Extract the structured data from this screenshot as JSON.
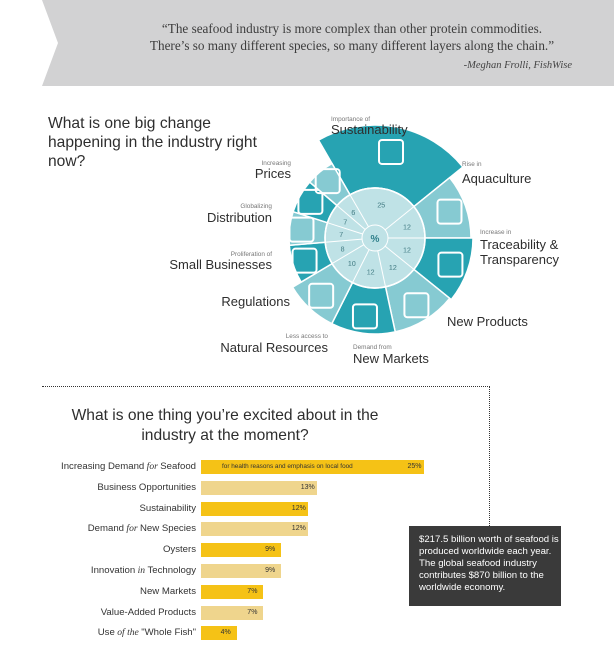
{
  "quote": {
    "line1": "“The seafood industry is more complex than other protein commodities.",
    "line2": "There’s so many different species, so many different layers along the chain.”",
    "attribution": "-Meghan Frolli, FishWise"
  },
  "question1": "What is one big change happening in the industry right now?",
  "question2": "What is one thing you’re excited about in the industry at the moment?",
  "factbox": "$217.5 billion worth of seafood is produced worldwide each year. The global seafood industry contributes $870 billion to the worldwide economy.",
  "colors": {
    "teal": "#27a3b2",
    "light_teal": "#86cad2",
    "inner": "#bfe2e6",
    "yellow": "#f5c216",
    "light_yellow": "#efd58d"
  },
  "center_symbol": "%",
  "chart_data": [
    {
      "type": "pie",
      "segments": [
        {
          "sub": "Importance of",
          "label": "Sustainability",
          "value": 25,
          "icon": "leaf-icon"
        },
        {
          "sub": "Rise in",
          "label": "Aquaculture",
          "value": 12,
          "icon": "farm-icon"
        },
        {
          "sub": "Increase in",
          "label": "Traceability & Transparency",
          "value": 12,
          "icon": "trace-icon"
        },
        {
          "sub": "",
          "label": "New Products",
          "value": 12,
          "icon": "box-icon"
        },
        {
          "sub": "Demand from",
          "label": "New Markets",
          "value": 12,
          "icon": "chart-icon"
        },
        {
          "sub": "Less access to",
          "label": "Natural Resources",
          "value": 10,
          "icon": "lock-icon"
        },
        {
          "sub": "",
          "label": "Regulations",
          "value": 8,
          "icon": "gavel-icon"
        },
        {
          "sub": "Proliferation of",
          "label": "Small Businesses",
          "value": 7,
          "icon": "people-icon"
        },
        {
          "sub": "Globalizing",
          "label": "Distribution",
          "value": 7,
          "icon": "arrow-icon"
        },
        {
          "sub": "Increasing",
          "label": "Prices",
          "value": 6,
          "icon": "dollar-icon"
        }
      ]
    },
    {
      "type": "bar",
      "orientation": "horizontal",
      "categories": [
        {
          "pre": "Increasing Demand",
          "em": "for",
          "post": "Seafood"
        },
        {
          "pre": "Business Opportunities",
          "em": "",
          "post": ""
        },
        {
          "pre": "Sustainability",
          "em": "",
          "post": ""
        },
        {
          "pre": "Demand",
          "em": "for",
          "post": "New Species"
        },
        {
          "pre": "Oysters",
          "em": "",
          "post": ""
        },
        {
          "pre": "Innovation",
          "em": "in",
          "post": "Technology"
        },
        {
          "pre": "New Markets",
          "em": "",
          "post": ""
        },
        {
          "pre": "Value-Added Products",
          "em": "",
          "post": ""
        },
        {
          "pre": "Use",
          "em": "of the",
          "post": "\"Whole Fish\""
        }
      ],
      "values": [
        25,
        13,
        12,
        12,
        9,
        9,
        7,
        7,
        4
      ],
      "labels": [
        "25%",
        "13%",
        "12%",
        "12%",
        "9%",
        "9%",
        "7%",
        "7%",
        "4%"
      ],
      "annotation": "for health reasons and emphasis on local food"
    }
  ]
}
